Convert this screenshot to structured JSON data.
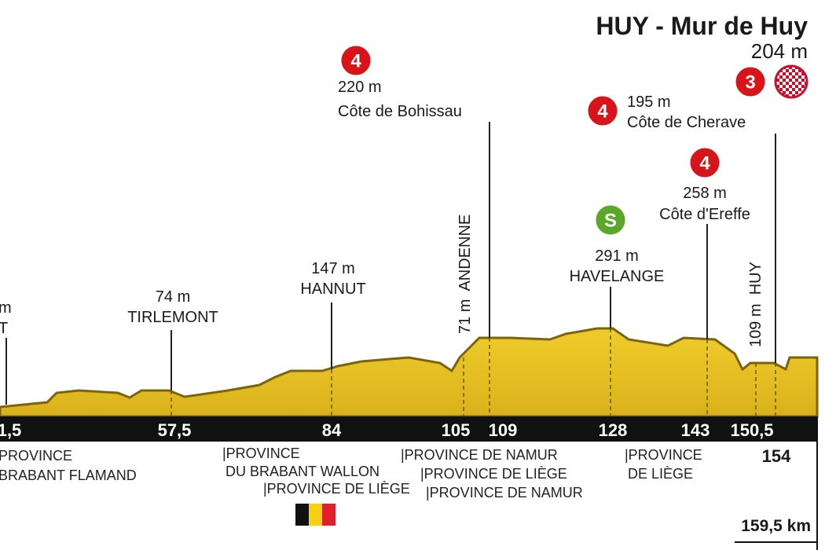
{
  "title": "HUY - Mur de Huy",
  "finish_altitude": "204 m",
  "finish_climb": {
    "category": "3"
  },
  "climbs": [
    {
      "category": "4",
      "altitude": "220 m",
      "name": "Côte de Bohissau"
    },
    {
      "category": "4",
      "altitude": "195 m",
      "name": "Côte de Cherave"
    },
    {
      "category": "4",
      "altitude": "258 m",
      "name": "Côte d'Ereffe"
    }
  ],
  "sprint": {
    "badge": "S",
    "altitude": "291 m",
    "name": "HAVELANGE"
  },
  "towns": [
    {
      "altitude": "m",
      "name": "T"
    },
    {
      "altitude": "74 m",
      "name": "TIRLEMONT"
    },
    {
      "altitude": "147 m",
      "name": "HANNUT"
    }
  ],
  "vertical_towns": [
    "71 m  ANDENNE",
    "109 m  HUY"
  ],
  "km_markers": [
    "1,5",
    "57,5",
    "84",
    "105",
    "109",
    "128",
    "143",
    "150,5"
  ],
  "km_below": "154",
  "provinces": [
    "PROVINCE",
    "BRABANT FLAMAND",
    "|PROVINCE",
    "DU BRABANT WALLON",
    "|PROVINCE DE LIÈGE",
    "|PROVINCE DE NAMUR",
    "|PROVINCE DE LIÈGE",
    "|PROVINCE DE NAMUR",
    "|PROVINCE",
    "DE LIÈGE"
  ],
  "total_distance": "159,5 km"
}
